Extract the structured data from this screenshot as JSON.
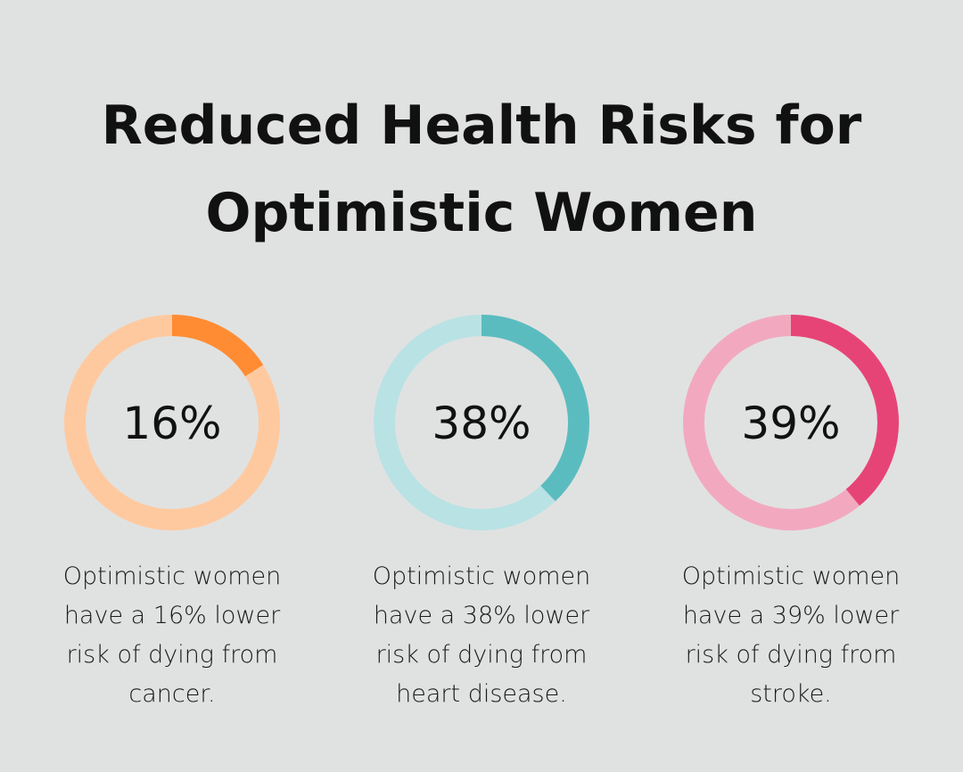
{
  "title_line1": "Reduced Health Risks for",
  "title_line2": "Optimistic Women",
  "chart_data": {
    "type": "pie",
    "subtype": "donut",
    "title": "Reduced Health Risks for Optimistic Women",
    "items": [
      {
        "value": 16,
        "label": "16%",
        "caption": [
          "Optimistic women",
          "have a 16% lower",
          "risk of dying from",
          "cancer."
        ],
        "color": "#ff8c33",
        "track_color": "#ffc9a0"
      },
      {
        "value": 38,
        "label": "38%",
        "caption": [
          "Optimistic women",
          "have a 38% lower",
          "risk of dying from",
          "heart disease."
        ],
        "color": "#5bbcbf",
        "track_color": "#b9e2e4"
      },
      {
        "value": 39,
        "label": "39%",
        "caption": [
          "Optimistic women",
          "have a 39% lower",
          "risk of dying from",
          "stroke."
        ],
        "color": "#e64477",
        "track_color": "#f2a9c0"
      }
    ]
  }
}
